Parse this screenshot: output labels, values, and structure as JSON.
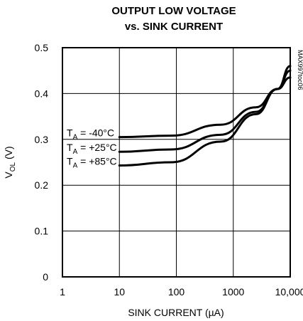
{
  "chart_data": {
    "type": "line",
    "title_line1": "OUTPUT LOW VOLTAGE",
    "title_line2": "vs. SINK CURRENT",
    "xlabel": "SINK CURRENT (µA)",
    "ylabel": {
      "main": "V",
      "sub": "OL",
      "rest": " (V)"
    },
    "x_scale": "log",
    "xlim": [
      1,
      10000
    ],
    "ylim": [
      0,
      0.5
    ],
    "grid": true,
    "x_ticks": [
      1,
      10,
      100,
      1000,
      10000
    ],
    "x_tick_labels": [
      "1",
      "10",
      "100",
      "1000",
      "10,000"
    ],
    "y_ticks": [
      0,
      0.1,
      0.2,
      0.3,
      0.4,
      0.5
    ],
    "y_tick_labels": [
      "0",
      "0.1",
      "0.2",
      "0.3",
      "0.4",
      "0.5"
    ],
    "side_text": "MAX997toc06",
    "series": [
      {
        "name": "TA = -40°C",
        "label_main": "T",
        "label_sub": "A",
        "label_rest": " = -40°C",
        "x": [
          10,
          80,
          600,
          2500,
          6000,
          10000
        ],
        "y": [
          0.305,
          0.308,
          0.332,
          0.37,
          0.41,
          0.435
        ]
      },
      {
        "name": "TA = +25°C",
        "label_main": "T",
        "label_sub": "A",
        "label_rest": " = +25°C",
        "x": [
          10,
          80,
          600,
          2500,
          6000,
          10000
        ],
        "y": [
          0.273,
          0.278,
          0.31,
          0.36,
          0.41,
          0.45
        ]
      },
      {
        "name": "TA = +85°C",
        "label_main": "T",
        "label_sub": "A",
        "label_rest": " = +85°C",
        "x": [
          10,
          80,
          600,
          2500,
          6000,
          10000
        ],
        "y": [
          0.243,
          0.25,
          0.295,
          0.355,
          0.41,
          0.46
        ]
      }
    ]
  }
}
